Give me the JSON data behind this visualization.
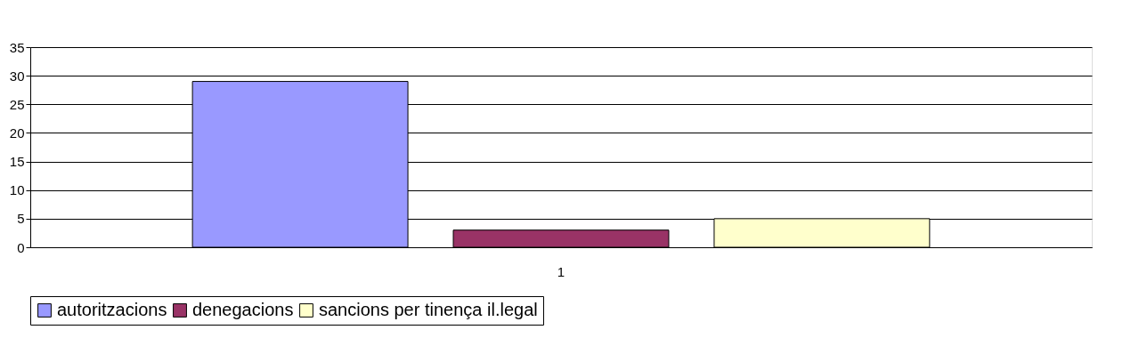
{
  "chart_data": {
    "type": "bar",
    "categories": [
      "1"
    ],
    "series": [
      {
        "name": "autoritzacions",
        "color": "#9999ff",
        "values": [
          29
        ]
      },
      {
        "name": "denegacions",
        "color": "#993366",
        "values": [
          3
        ]
      },
      {
        "name": "sancions per tinença il.legal",
        "color": "#ffffcc",
        "values": [
          5
        ]
      }
    ],
    "ylim": [
      0,
      35
    ],
    "yticks": [
      0,
      5,
      10,
      15,
      20,
      25,
      30,
      35
    ],
    "grid": "y",
    "legend": "bottom"
  }
}
